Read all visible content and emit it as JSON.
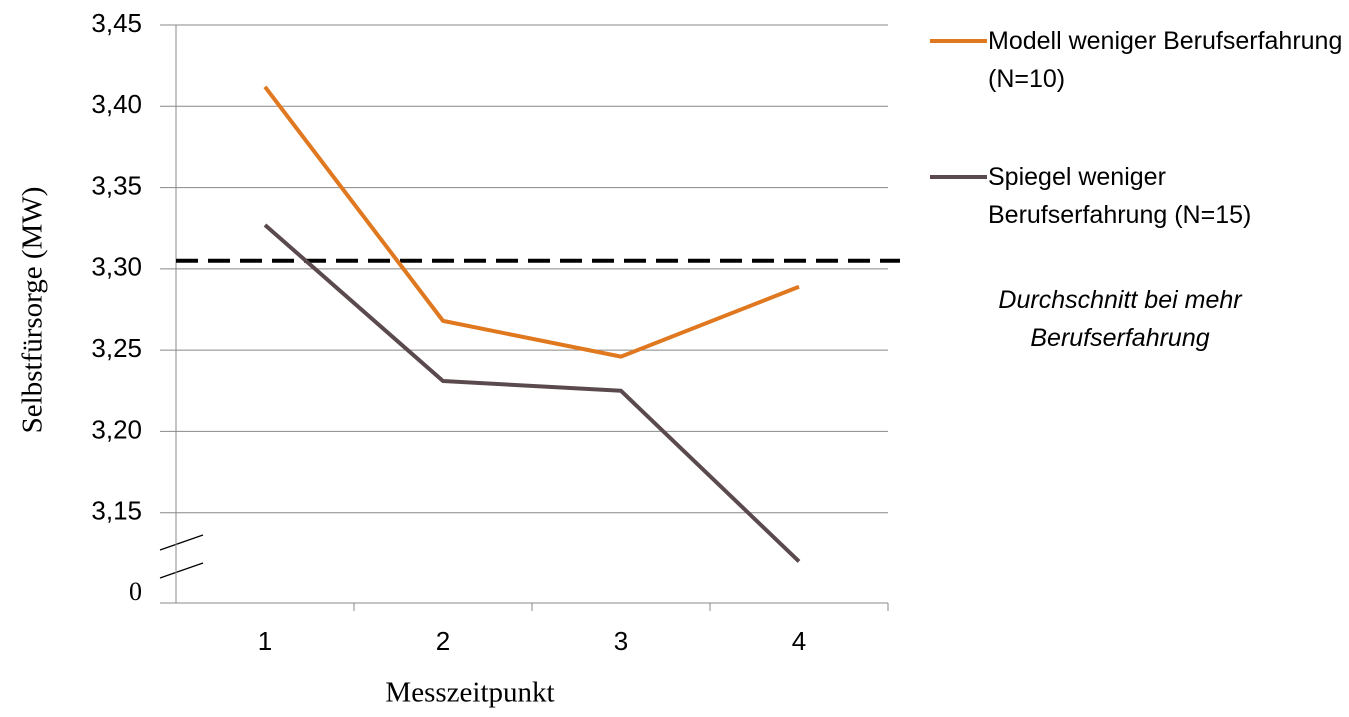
{
  "chart_data": {
    "type": "line",
    "x_label": "Messzeitpunkt",
    "y_label": "Selbstfürsorge (MW)",
    "categories": [
      "1",
      "2",
      "3",
      "4"
    ],
    "series": [
      {
        "name": "Modell weniger Berufserfahrung (N=10)",
        "color": "#e07820",
        "values": [
          3.412,
          3.268,
          3.246,
          3.289
        ]
      },
      {
        "name": "Spiegel weniger Berufserfahrung (N=15)",
        "color": "#5a4a4e",
        "values": [
          3.327,
          3.231,
          3.225,
          3.12
        ]
      }
    ],
    "reference_line": {
      "value": 3.305,
      "label": "Durchschnitt bei mehr Berufserfahrung",
      "color": "#000000"
    },
    "ylim": [
      0,
      3.45
    ],
    "axis_break": [
      0,
      3.1
    ],
    "yticks": [
      0,
      {
        "value": 3.15,
        "label": "3,15"
      },
      {
        "value": 3.2,
        "label": "3,20"
      },
      {
        "value": 3.25,
        "label": "3,25"
      },
      {
        "value": 3.3,
        "label": "3,30"
      },
      {
        "value": 3.35,
        "label": "3,35"
      },
      {
        "value": 3.4,
        "label": "3,40"
      },
      {
        "value": 3.45,
        "label": "3,45"
      }
    ],
    "grid": true,
    "legend": "right"
  }
}
